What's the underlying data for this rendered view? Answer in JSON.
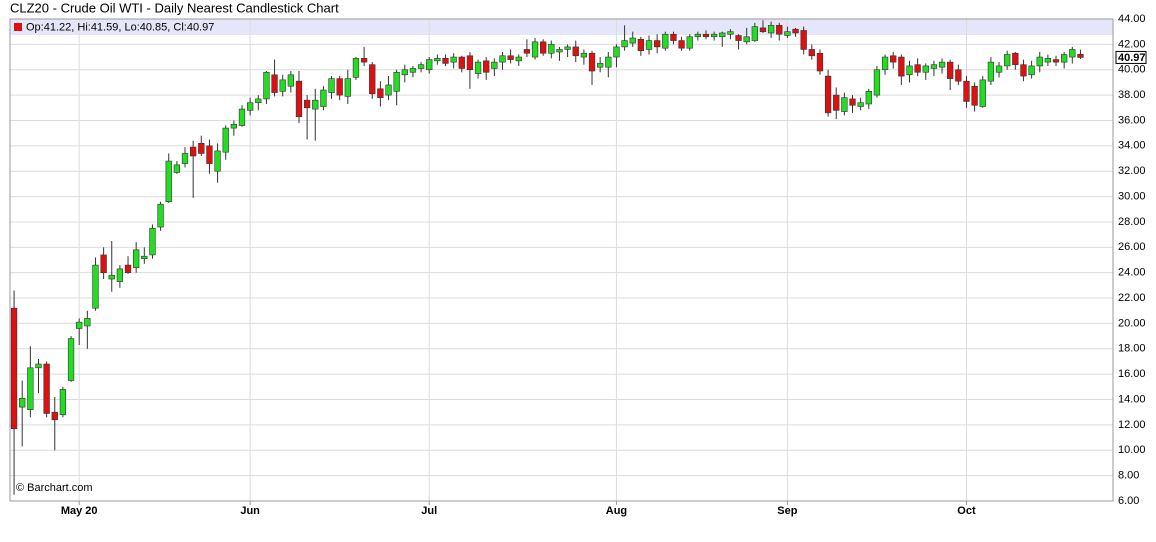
{
  "chart_data": {
    "type": "candlestick",
    "title": "CLZ20 - Crude Oil WTI - Daily Nearest Candlestick Chart",
    "legend_text": "Op:41.22, Hi:41.59, Lo:40.85, Cl:40.97",
    "legend_color": "#dd1111",
    "credit": "© Barchart.com",
    "last_label": {
      "value": 40.97,
      "label": "40.97"
    },
    "up_color": "#22dd22",
    "down_color": "#dd1111",
    "grid": true,
    "open": [
      21.2,
      13.4,
      13.2,
      16.5,
      16.8,
      13.0,
      12.8,
      15.5,
      19.6,
      19.8,
      21.2,
      25.4,
      23.5,
      23.3,
      24.6,
      24.4,
      25.1,
      25.4,
      27.6,
      29.6,
      31.9,
      32.6,
      33.9,
      34.2,
      34.0,
      32.0,
      33.5,
      35.4,
      35.6,
      36.8,
      37.4,
      37.7,
      39.6,
      38.3,
      38.7,
      39.1,
      37.6,
      36.9,
      37.1,
      38.2,
      39.3,
      37.9,
      39.4,
      40.9,
      40.4,
      38.5,
      38.0,
      38.3,
      39.6,
      39.8,
      40.1,
      40.0,
      40.7,
      40.9,
      40.6,
      41.0,
      41.1,
      39.7,
      40.7,
      40.1,
      40.6,
      41.1,
      40.7,
      41.6,
      41.0,
      42.2,
      41.3,
      41.4,
      41.6,
      41.8,
      41.0,
      41.3,
      40.2,
      40.2,
      41.0,
      41.8,
      42.1,
      42.4,
      41.6,
      42.3,
      41.7,
      42.8,
      42.3,
      41.7,
      42.6,
      42.8,
      42.6,
      42.6,
      42.8,
      42.7,
      42.2,
      42.3,
      43.3,
      42.9,
      43.5,
      42.7,
      43.2,
      43.1,
      41.6,
      41.3,
      39.5,
      38.0,
      36.7,
      37.7,
      37.1,
      37.3,
      38.0,
      40.0,
      41.1,
      41.0,
      39.6,
      40.4,
      39.8,
      40.1,
      40.2,
      40.6,
      40.0,
      39.1,
      38.7,
      37.1,
      39.1,
      39.8,
      40.3,
      41.3,
      40.4,
      39.6,
      40.3,
      40.6,
      40.8,
      40.6,
      41.0,
      41.22
    ],
    "high": [
      22.6,
      15.5,
      18.2,
      17.2,
      17.0,
      14.2,
      15.0,
      19.0,
      20.4,
      21.0,
      25.2,
      26.0,
      26.5,
      24.6,
      25.3,
      26.4,
      26.0,
      27.8,
      29.6,
      33.4,
      32.8,
      33.9,
      34.4,
      34.8,
      34.5,
      34.2,
      35.6,
      36.0,
      37.2,
      37.8,
      38.0,
      39.9,
      40.8,
      39.6,
      39.9,
      39.9,
      38.0,
      38.5,
      38.7,
      39.5,
      39.5,
      40.0,
      41.0,
      41.8,
      40.6,
      39.1,
      39.5,
      40.0,
      40.4,
      40.3,
      40.6,
      41.0,
      41.2,
      41.2,
      41.3,
      41.1,
      41.4,
      40.8,
      41.0,
      40.9,
      41.4,
      41.6,
      41.2,
      42.4,
      42.5,
      42.4,
      42.3,
      41.8,
      42.0,
      42.3,
      41.6,
      41.5,
      41.0,
      41.4,
      42.0,
      43.5,
      43.0,
      42.6,
      42.7,
      42.8,
      43.0,
      43.0,
      42.6,
      42.8,
      43.0,
      43.1,
      43.0,
      43.0,
      43.2,
      42.8,
      43.3,
      43.7,
      43.9,
      43.8,
      43.7,
      43.4,
      43.3,
      43.4,
      42.0,
      41.6,
      40.0,
      38.6,
      38.2,
      38.0,
      37.8,
      38.5,
      40.3,
      41.2,
      41.4,
      41.2,
      40.7,
      40.9,
      40.5,
      40.7,
      40.9,
      40.8,
      40.4,
      39.5,
      39.0,
      39.5,
      41.0,
      40.6,
      41.5,
      41.4,
      40.8,
      40.7,
      41.4,
      41.2,
      41.1,
      41.4,
      41.8,
      41.59
    ],
    "low": [
      6.5,
      10.3,
      12.6,
      14.5,
      12.6,
      10.0,
      12.6,
      15.4,
      18.3,
      18.0,
      21.0,
      23.5,
      22.5,
      22.8,
      23.9,
      24.0,
      24.7,
      25.1,
      27.3,
      29.5,
      31.8,
      32.3,
      29.9,
      33.2,
      31.8,
      31.1,
      32.9,
      34.8,
      35.5,
      36.4,
      36.8,
      37.3,
      37.9,
      37.9,
      38.2,
      35.8,
      34.5,
      34.4,
      36.8,
      37.7,
      37.6,
      37.3,
      39.2,
      40.3,
      37.7,
      37.1,
      37.6,
      37.2,
      39.0,
      39.4,
      39.8,
      39.7,
      40.4,
      40.3,
      40.1,
      39.8,
      38.5,
      39.3,
      39.2,
      39.5,
      40.0,
      40.5,
      40.3,
      41.0,
      40.8,
      41.1,
      40.9,
      40.7,
      41.0,
      40.6,
      40.4,
      38.8,
      39.8,
      39.4,
      40.2,
      41.5,
      41.8,
      41.1,
      41.2,
      41.3,
      41.5,
      42.0,
      41.5,
      41.5,
      42.3,
      42.4,
      42.3,
      41.8,
      42.4,
      41.6,
      42.0,
      42.2,
      42.9,
      42.5,
      42.3,
      42.5,
      42.6,
      41.2,
      40.8,
      39.6,
      36.3,
      36.1,
      36.4,
      36.6,
      36.8,
      36.9,
      37.8,
      39.6,
      40.1,
      38.8,
      39.0,
      39.5,
      39.2,
      39.5,
      39.7,
      38.4,
      38.8,
      37.0,
      36.7,
      37.0,
      38.8,
      39.4,
      40.0,
      40.0,
      39.1,
      39.3,
      39.8,
      40.3,
      40.3,
      40.1,
      40.5,
      40.85
    ],
    "close": [
      11.7,
      14.1,
      16.5,
      16.8,
      12.9,
      12.4,
      14.8,
      18.8,
      20.1,
      20.4,
      24.6,
      24.0,
      23.8,
      24.3,
      24.0,
      25.8,
      25.3,
      27.5,
      29.4,
      32.8,
      32.5,
      33.4,
      33.2,
      33.4,
      32.6,
      33.6,
      35.4,
      35.7,
      36.9,
      37.4,
      37.7,
      39.8,
      38.2,
      39.2,
      39.6,
      36.3,
      37.0,
      37.6,
      38.4,
      39.3,
      38.0,
      39.3,
      40.9,
      40.6,
      38.1,
      37.8,
      38.8,
      39.8,
      40.0,
      40.1,
      40.4,
      40.8,
      40.9,
      40.5,
      41.0,
      40.1,
      40.0,
      40.6,
      39.8,
      40.6,
      41.1,
      40.8,
      41.0,
      41.3,
      42.2,
      41.3,
      42.0,
      41.6,
      41.8,
      41.1,
      41.3,
      39.9,
      40.5,
      41.0,
      41.8,
      42.3,
      42.5,
      41.5,
      42.3,
      41.8,
      42.8,
      42.3,
      41.7,
      42.6,
      42.8,
      42.6,
      42.8,
      42.9,
      43.0,
      42.3,
      42.6,
      43.4,
      43.0,
      43.5,
      42.8,
      43.0,
      42.9,
      41.6,
      41.1,
      39.9,
      36.6,
      36.8,
      37.8,
      37.2,
      37.4,
      38.3,
      40.0,
      41.0,
      40.6,
      39.5,
      40.3,
      39.8,
      40.3,
      40.4,
      40.6,
      39.3,
      39.1,
      37.5,
      37.2,
      39.2,
      40.6,
      40.3,
      41.2,
      40.4,
      39.5,
      40.3,
      41.0,
      40.9,
      40.6,
      41.2,
      41.6,
      40.97
    ],
    "xlim": [
      -0.5,
      135
    ],
    "xticks": [
      {
        "value": 8,
        "label": "May 20"
      },
      {
        "value": 29,
        "label": "Jun"
      },
      {
        "value": 51,
        "label": "Jul"
      },
      {
        "value": 74,
        "label": "Aug"
      },
      {
        "value": 95,
        "label": "Sep"
      },
      {
        "value": 117,
        "label": "Oct"
      }
    ],
    "ylim": [
      6,
      44
    ],
    "yticks": [
      {
        "value": 6,
        "label": "6.00"
      },
      {
        "value": 8,
        "label": "8.00"
      },
      {
        "value": 10,
        "label": "10.00"
      },
      {
        "value": 12,
        "label": "12.00"
      },
      {
        "value": 14,
        "label": "14.00"
      },
      {
        "value": 16,
        "label": "16.00"
      },
      {
        "value": 18,
        "label": "18.00"
      },
      {
        "value": 20,
        "label": "20.00"
      },
      {
        "value": 22,
        "label": "22.00"
      },
      {
        "value": 24,
        "label": "24.00"
      },
      {
        "value": 26,
        "label": "26.00"
      },
      {
        "value": 28,
        "label": "28.00"
      },
      {
        "value": 30,
        "label": "30.00"
      },
      {
        "value": 32,
        "label": "32.00"
      },
      {
        "value": 34,
        "label": "34.00"
      },
      {
        "value": 36,
        "label": "36.00"
      },
      {
        "value": 38,
        "label": "38.00"
      },
      {
        "value": 40,
        "label": "40.00"
      },
      {
        "value": 42,
        "label": "42.00"
      },
      {
        "value": 44,
        "label": "44.00"
      }
    ]
  }
}
